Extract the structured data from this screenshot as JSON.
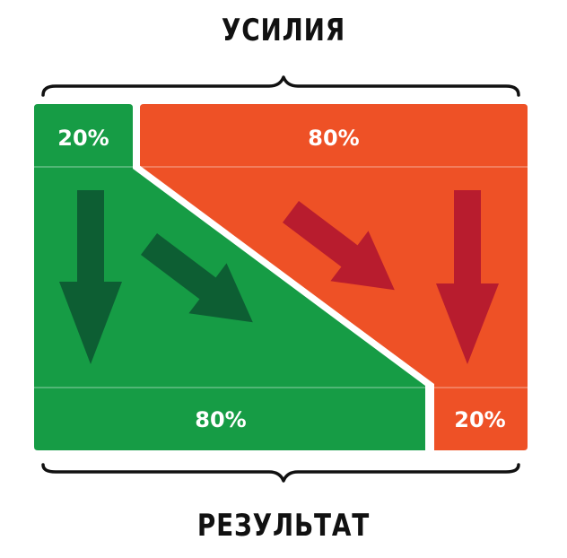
{
  "title_top": "УСИЛИЯ",
  "title_bottom": "РЕЗУЛЬТАТ",
  "effort": {
    "left_label": "20%",
    "right_label": "80%"
  },
  "result": {
    "left_label": "80%",
    "right_label": "20%"
  },
  "colors": {
    "green": "#169c45",
    "green_arrow": "#0d5e33",
    "orange": "#ee5126",
    "red_arrow": "#b81c2e",
    "text": "#111111"
  }
}
